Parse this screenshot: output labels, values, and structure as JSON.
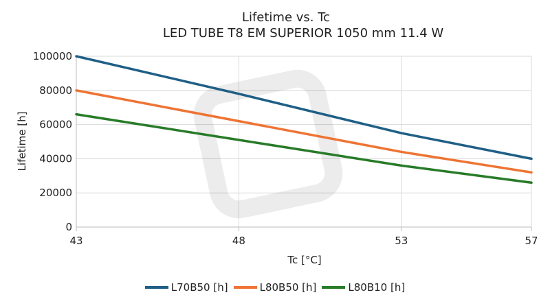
{
  "chart_data": {
    "type": "line",
    "title": "Lifetime vs. Tc",
    "subtitle": "LED TUBE T8 EM SUPERIOR 1050 mm 11.4 W",
    "xlabel": "Tc [°C]",
    "ylabel": "Lifetime [h]",
    "x": [
      43,
      48,
      53,
      57
    ],
    "xlim": [
      43,
      57
    ],
    "ylim": [
      0,
      100000
    ],
    "xticks": [
      "43",
      "48",
      "53",
      "57"
    ],
    "yticks": [
      "0",
      "20000",
      "40000",
      "60000",
      "80000",
      "100000"
    ],
    "grid": true,
    "legend_position": "bottom",
    "series": [
      {
        "name": "L70B50 [h]",
        "color": "#1f5f86",
        "values": [
          100000,
          78000,
          55000,
          40000
        ]
      },
      {
        "name": "L80B50 [h]",
        "color": "#ee7434",
        "values": [
          80000,
          62000,
          44000,
          32000
        ]
      },
      {
        "name": "L80B10 [h]",
        "color": "#287b28",
        "values": [
          66000,
          51000,
          36000,
          26000
        ]
      }
    ]
  }
}
